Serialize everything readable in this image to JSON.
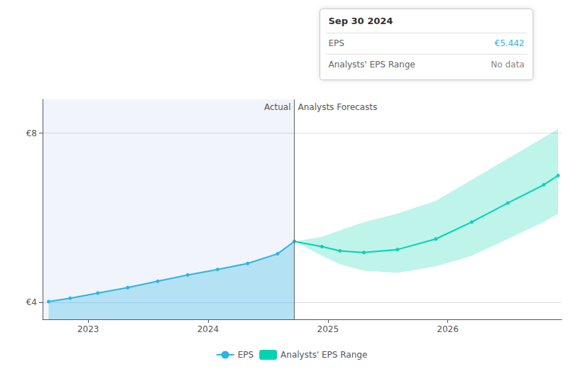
{
  "chart_data": {
    "type": "line",
    "xlim": [
      2022.62,
      2026.95
    ],
    "xticks": [
      2023,
      2024,
      2025,
      2026
    ],
    "ylim": [
      3.6,
      8.8
    ],
    "yticks": [
      {
        "value": 4,
        "label": "€4"
      },
      {
        "value": 8,
        "label": "€8"
      }
    ],
    "grid": true,
    "legend": "bottom",
    "divider_x": 2024.72,
    "annotations": [
      "Actual",
      "Analysts Forecasts"
    ],
    "series": [
      {
        "name": "EPS",
        "type": "area",
        "color": "#29b5e8",
        "marker": "circle",
        "x": [
          2022.67,
          2022.85,
          2023.08,
          2023.33,
          2023.58,
          2023.83,
          2024.08,
          2024.33,
          2024.58,
          2024.72
        ],
        "values": [
          4.02,
          4.1,
          4.22,
          4.35,
          4.5,
          4.65,
          4.78,
          4.92,
          5.15,
          5.442
        ]
      },
      {
        "name": "Analysts' EPS Range",
        "type": "line",
        "color": "#00d4b0",
        "marker": "circle",
        "x": [
          2024.72,
          2024.95,
          2025.1,
          2025.3,
          2025.58,
          2025.9,
          2026.2,
          2026.5,
          2026.8,
          2026.92
        ],
        "values": [
          5.442,
          5.32,
          5.22,
          5.18,
          5.25,
          5.5,
          5.9,
          6.35,
          6.78,
          7.0
        ],
        "upper": [
          5.442,
          5.55,
          5.7,
          5.9,
          6.1,
          6.4,
          6.9,
          7.4,
          7.9,
          8.1
        ],
        "lower": [
          5.442,
          5.1,
          4.9,
          4.75,
          4.7,
          4.85,
          5.1,
          5.5,
          5.9,
          6.1
        ]
      }
    ],
    "tooltip": {
      "title": "Sep 30 2024",
      "rows": [
        {
          "label": "EPS",
          "value": "€5.442"
        },
        {
          "label": "Analysts' EPS Range",
          "value": "No data"
        }
      ]
    }
  }
}
